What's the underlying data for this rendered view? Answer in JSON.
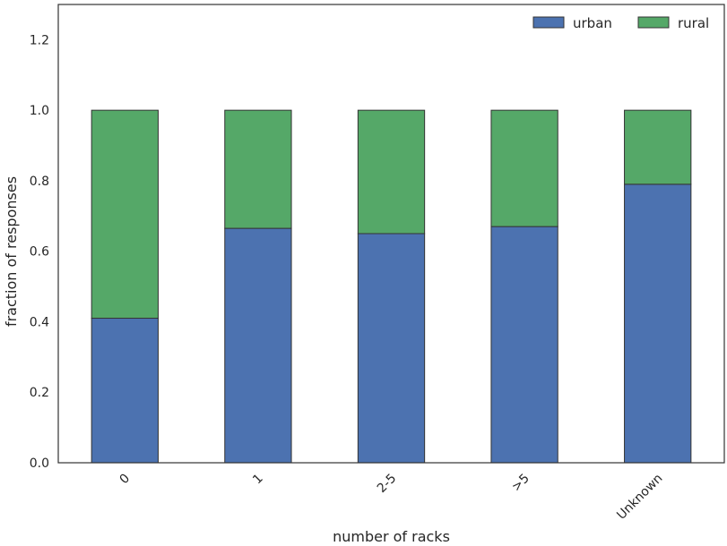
{
  "chart_data": {
    "type": "bar",
    "stacked": true,
    "categories": [
      "0",
      "1",
      "2-5",
      ">5",
      "Unknown"
    ],
    "series": [
      {
        "name": "urban",
        "color": "#4c72b0",
        "values": [
          0.41,
          0.665,
          0.65,
          0.67,
          0.79
        ]
      },
      {
        "name": "rural",
        "color": "#55a868",
        "values": [
          0.59,
          0.335,
          0.35,
          0.33,
          0.21
        ]
      }
    ],
    "title": "",
    "xlabel": "number of racks",
    "ylabel": "fraction of responses",
    "ylim": [
      0,
      1.3
    ],
    "yticks": [
      0.0,
      0.2,
      0.4,
      0.6,
      0.8,
      1.0,
      1.2
    ],
    "ytick_labels": [
      "0.0",
      "0.2",
      "0.4",
      "0.6",
      "0.8",
      "1.0",
      "1.2"
    ],
    "xtick_rotation_deg": 45,
    "grid": false,
    "legend": {
      "position": "top-right",
      "columns": 2
    },
    "edge_color": "#333333",
    "frame_color": "#333333"
  }
}
